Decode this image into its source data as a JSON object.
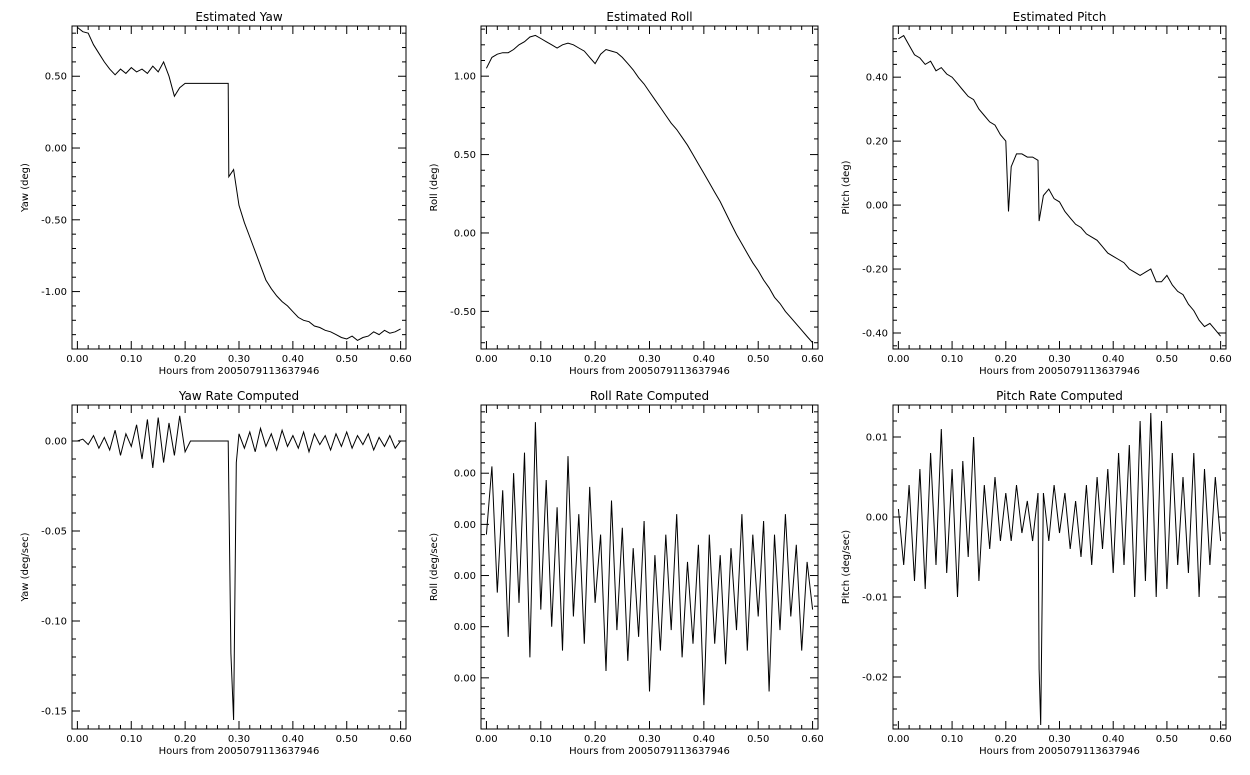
{
  "chart_data": [
    {
      "type": "line",
      "title": "Estimated Yaw",
      "xlabel": "Hours from 2005079113637946",
      "ylabel": "Yaw (deg)",
      "xlim": [
        -0.01,
        0.61
      ],
      "ylim": [
        -1.4,
        0.85
      ],
      "xticks": [
        "0.00",
        "0.10",
        "0.20",
        "0.30",
        "0.40",
        "0.50",
        "0.60"
      ],
      "xtick_values": [
        0,
        0.1,
        0.2,
        0.3,
        0.4,
        0.5,
        0.6
      ],
      "yticks": [
        "-1.00",
        "-0.50",
        "0.00",
        "0.50"
      ],
      "ytick_values": [
        -1,
        -0.5,
        0,
        0.5
      ],
      "x": [
        0.0,
        0.01,
        0.02,
        0.03,
        0.04,
        0.05,
        0.06,
        0.07,
        0.08,
        0.09,
        0.1,
        0.11,
        0.12,
        0.13,
        0.14,
        0.15,
        0.16,
        0.17,
        0.18,
        0.19,
        0.2,
        0.21,
        0.22,
        0.23,
        0.24,
        0.25,
        0.26,
        0.27,
        0.28,
        0.281,
        0.29,
        0.3,
        0.31,
        0.32,
        0.33,
        0.34,
        0.35,
        0.36,
        0.37,
        0.38,
        0.39,
        0.4,
        0.41,
        0.42,
        0.43,
        0.44,
        0.45,
        0.46,
        0.47,
        0.48,
        0.49,
        0.5,
        0.51,
        0.52,
        0.53,
        0.54,
        0.55,
        0.56,
        0.57,
        0.58,
        0.59,
        0.6
      ],
      "y": [
        0.84,
        0.81,
        0.8,
        0.72,
        0.66,
        0.6,
        0.55,
        0.51,
        0.55,
        0.52,
        0.56,
        0.53,
        0.55,
        0.52,
        0.57,
        0.53,
        0.6,
        0.5,
        0.36,
        0.42,
        0.45,
        0.45,
        0.45,
        0.45,
        0.45,
        0.45,
        0.45,
        0.45,
        0.45,
        -0.2,
        -0.15,
        -0.4,
        -0.52,
        -0.62,
        -0.72,
        -0.82,
        -0.92,
        -0.98,
        -1.03,
        -1.07,
        -1.1,
        -1.14,
        -1.18,
        -1.2,
        -1.21,
        -1.24,
        -1.25,
        -1.27,
        -1.28,
        -1.3,
        -1.32,
        -1.33,
        -1.31,
        -1.34,
        -1.32,
        -1.31,
        -1.28,
        -1.3,
        -1.27,
        -1.29,
        -1.28,
        -1.26
      ]
    },
    {
      "type": "line",
      "title": "Estimated Roll",
      "xlabel": "Hours from 2005079113637946",
      "ylabel": "Roll (deg)",
      "xlim": [
        -0.01,
        0.61
      ],
      "ylim": [
        -0.74,
        1.32
      ],
      "xticks": [
        "0.00",
        "0.10",
        "0.20",
        "0.30",
        "0.40",
        "0.50",
        "0.60"
      ],
      "xtick_values": [
        0,
        0.1,
        0.2,
        0.3,
        0.4,
        0.5,
        0.6
      ],
      "yticks": [
        "-0.50",
        "0.00",
        "0.50",
        "1.00"
      ],
      "ytick_values": [
        -0.5,
        0,
        0.5,
        1
      ],
      "x": [
        0.0,
        0.01,
        0.02,
        0.03,
        0.04,
        0.05,
        0.06,
        0.07,
        0.08,
        0.09,
        0.1,
        0.11,
        0.12,
        0.13,
        0.14,
        0.15,
        0.16,
        0.17,
        0.18,
        0.19,
        0.2,
        0.21,
        0.22,
        0.23,
        0.24,
        0.25,
        0.26,
        0.27,
        0.28,
        0.29,
        0.3,
        0.31,
        0.32,
        0.33,
        0.34,
        0.35,
        0.36,
        0.37,
        0.38,
        0.39,
        0.4,
        0.41,
        0.42,
        0.43,
        0.44,
        0.45,
        0.46,
        0.47,
        0.48,
        0.49,
        0.5,
        0.51,
        0.52,
        0.53,
        0.54,
        0.55,
        0.56,
        0.57,
        0.58,
        0.59,
        0.6
      ],
      "y": [
        1.05,
        1.12,
        1.14,
        1.15,
        1.15,
        1.17,
        1.2,
        1.22,
        1.25,
        1.26,
        1.24,
        1.22,
        1.2,
        1.18,
        1.2,
        1.21,
        1.2,
        1.18,
        1.16,
        1.12,
        1.08,
        1.14,
        1.17,
        1.16,
        1.15,
        1.12,
        1.08,
        1.04,
        0.99,
        0.95,
        0.9,
        0.85,
        0.8,
        0.75,
        0.7,
        0.66,
        0.61,
        0.56,
        0.5,
        0.44,
        0.38,
        0.32,
        0.26,
        0.2,
        0.13,
        0.06,
        -0.01,
        -0.07,
        -0.13,
        -0.19,
        -0.24,
        -0.3,
        -0.35,
        -0.41,
        -0.45,
        -0.5,
        -0.54,
        -0.58,
        -0.62,
        -0.66,
        -0.7
      ]
    },
    {
      "type": "line",
      "title": "Estimated Pitch",
      "xlabel": "Hours from 2005079113637946",
      "ylabel": "Pitch (deg)",
      "xlim": [
        -0.01,
        0.61
      ],
      "ylim": [
        -0.45,
        0.56
      ],
      "xticks": [
        "0.00",
        "0.10",
        "0.20",
        "0.30",
        "0.40",
        "0.50",
        "0.60"
      ],
      "xtick_values": [
        0,
        0.1,
        0.2,
        0.3,
        0.4,
        0.5,
        0.6
      ],
      "yticks": [
        "-0.40",
        "-0.20",
        "0.00",
        "0.20",
        "0.40"
      ],
      "ytick_values": [
        -0.4,
        -0.2,
        0,
        0.2,
        0.4
      ],
      "x": [
        0.0,
        0.01,
        0.02,
        0.03,
        0.04,
        0.05,
        0.06,
        0.07,
        0.08,
        0.09,
        0.1,
        0.11,
        0.12,
        0.13,
        0.14,
        0.15,
        0.16,
        0.17,
        0.18,
        0.19,
        0.2,
        0.205,
        0.21,
        0.22,
        0.23,
        0.24,
        0.25,
        0.26,
        0.262,
        0.27,
        0.28,
        0.29,
        0.3,
        0.31,
        0.32,
        0.33,
        0.34,
        0.35,
        0.36,
        0.37,
        0.38,
        0.39,
        0.4,
        0.41,
        0.42,
        0.43,
        0.44,
        0.45,
        0.46,
        0.47,
        0.48,
        0.49,
        0.5,
        0.51,
        0.52,
        0.53,
        0.54,
        0.55,
        0.56,
        0.57,
        0.58,
        0.59,
        0.6
      ],
      "y": [
        0.52,
        0.53,
        0.5,
        0.47,
        0.46,
        0.44,
        0.45,
        0.42,
        0.43,
        0.41,
        0.4,
        0.38,
        0.36,
        0.34,
        0.33,
        0.3,
        0.28,
        0.26,
        0.25,
        0.22,
        0.2,
        -0.02,
        0.12,
        0.16,
        0.16,
        0.15,
        0.15,
        0.14,
        -0.05,
        0.03,
        0.05,
        0.02,
        0.01,
        -0.02,
        -0.04,
        -0.06,
        -0.07,
        -0.09,
        -0.1,
        -0.11,
        -0.13,
        -0.15,
        -0.16,
        -0.17,
        -0.18,
        -0.2,
        -0.21,
        -0.22,
        -0.21,
        -0.2,
        -0.24,
        -0.24,
        -0.22,
        -0.25,
        -0.27,
        -0.28,
        -0.31,
        -0.33,
        -0.36,
        -0.38,
        -0.37,
        -0.39,
        -0.41
      ]
    },
    {
      "type": "line",
      "title": "Yaw Rate Computed",
      "xlabel": "Hours from 2005079113637946",
      "ylabel": "Yaw (deg/sec)",
      "xlim": [
        -0.01,
        0.61
      ],
      "ylim": [
        -0.16,
        0.02
      ],
      "xticks": [
        "0.00",
        "0.10",
        "0.20",
        "0.30",
        "0.40",
        "0.50",
        "0.60"
      ],
      "xtick_values": [
        0,
        0.1,
        0.2,
        0.3,
        0.4,
        0.5,
        0.6
      ],
      "yticks": [
        "-0.15",
        "-0.10",
        "-0.05",
        "0.00"
      ],
      "ytick_values": [
        -0.15,
        -0.1,
        -0.05,
        0
      ],
      "x": [
        0.0,
        0.01,
        0.02,
        0.03,
        0.04,
        0.05,
        0.06,
        0.07,
        0.08,
        0.09,
        0.1,
        0.11,
        0.12,
        0.13,
        0.14,
        0.15,
        0.16,
        0.17,
        0.18,
        0.19,
        0.2,
        0.21,
        0.22,
        0.23,
        0.24,
        0.25,
        0.26,
        0.27,
        0.28,
        0.285,
        0.29,
        0.295,
        0.3,
        0.31,
        0.32,
        0.33,
        0.34,
        0.35,
        0.36,
        0.37,
        0.38,
        0.39,
        0.4,
        0.41,
        0.42,
        0.43,
        0.44,
        0.45,
        0.46,
        0.47,
        0.48,
        0.49,
        0.5,
        0.51,
        0.52,
        0.53,
        0.54,
        0.55,
        0.56,
        0.57,
        0.58,
        0.59,
        0.6
      ],
      "y": [
        0.0,
        0.001,
        -0.002,
        0.003,
        -0.004,
        0.002,
        -0.005,
        0.006,
        -0.008,
        0.004,
        -0.003,
        0.009,
        -0.01,
        0.012,
        -0.015,
        0.013,
        -0.012,
        0.01,
        -0.008,
        0.014,
        -0.006,
        0.0,
        0.0,
        0.0,
        0.0,
        0.0,
        0.0,
        0.0,
        0.0,
        -0.118,
        -0.155,
        -0.012,
        0.004,
        -0.004,
        0.005,
        -0.006,
        0.007,
        -0.003,
        0.004,
        -0.005,
        0.006,
        -0.003,
        0.003,
        -0.004,
        0.005,
        -0.006,
        0.004,
        -0.002,
        0.003,
        -0.005,
        0.004,
        -0.003,
        0.005,
        -0.004,
        0.003,
        -0.002,
        0.004,
        -0.005,
        0.002,
        -0.003,
        0.003,
        -0.004,
        0.0
      ]
    },
    {
      "type": "line",
      "title": "Roll Rate Computed",
      "xlabel": "Hours from 2005079113637946",
      "ylabel": "Roll (deg/sec)",
      "xlim": [
        -0.01,
        0.61
      ],
      "ylim": [
        -0.0045,
        0.005
      ],
      "xticks": [
        "0.00",
        "0.10",
        "0.20",
        "0.30",
        "0.40",
        "0.50",
        "0.60"
      ],
      "xtick_values": [
        0,
        0.1,
        0.2,
        0.3,
        0.4,
        0.5,
        0.6
      ],
      "yticks": [
        "0.00",
        "0.00",
        "0.00",
        "0.00",
        "0.00"
      ],
      "ytick_values": [
        -0.003,
        -0.0015,
        0.0,
        0.0015,
        0.003
      ],
      "x": [
        0.0,
        0.01,
        0.02,
        0.03,
        0.04,
        0.05,
        0.06,
        0.07,
        0.08,
        0.09,
        0.1,
        0.11,
        0.12,
        0.13,
        0.14,
        0.15,
        0.16,
        0.17,
        0.18,
        0.19,
        0.2,
        0.21,
        0.22,
        0.23,
        0.24,
        0.25,
        0.26,
        0.27,
        0.28,
        0.29,
        0.3,
        0.31,
        0.32,
        0.33,
        0.34,
        0.35,
        0.36,
        0.37,
        0.38,
        0.39,
        0.4,
        0.41,
        0.42,
        0.43,
        0.44,
        0.45,
        0.46,
        0.47,
        0.48,
        0.49,
        0.5,
        0.51,
        0.52,
        0.53,
        0.54,
        0.55,
        0.56,
        0.57,
        0.58,
        0.59,
        0.6
      ],
      "y": [
        0.0012,
        0.0032,
        -0.0005,
        0.0025,
        -0.0018,
        0.003,
        -0.0008,
        0.0036,
        -0.0024,
        0.0045,
        -0.001,
        0.0028,
        -0.0015,
        0.002,
        -0.0022,
        0.0035,
        -0.0012,
        0.0018,
        -0.002,
        0.0026,
        -0.0008,
        0.0012,
        -0.0028,
        0.0022,
        -0.0016,
        0.0014,
        -0.0025,
        0.0008,
        -0.0018,
        0.0016,
        -0.0034,
        0.0006,
        -0.0022,
        0.0012,
        -0.0016,
        0.0018,
        -0.0024,
        0.0004,
        -0.002,
        0.0009,
        -0.0038,
        0.0012,
        -0.002,
        0.0006,
        -0.0026,
        0.0008,
        -0.0016,
        0.0018,
        -0.0022,
        0.0012,
        -0.0012,
        0.0016,
        -0.0034,
        0.0012,
        -0.0016,
        0.0018,
        -0.0012,
        0.0009,
        -0.0022,
        0.0004,
        -0.001
      ]
    },
    {
      "type": "line",
      "title": "Pitch Rate Computed",
      "xlabel": "Hours from 2005079113637946",
      "ylabel": "Pitch (deg/sec)",
      "xlim": [
        -0.01,
        0.61
      ],
      "ylim": [
        -0.0265,
        0.014
      ],
      "xticks": [
        "0.00",
        "0.10",
        "0.20",
        "0.30",
        "0.40",
        "0.50",
        "0.60"
      ],
      "xtick_values": [
        0,
        0.1,
        0.2,
        0.3,
        0.4,
        0.5,
        0.6
      ],
      "yticks": [
        "-0.02",
        "-0.01",
        "0.00",
        "0.01"
      ],
      "ytick_values": [
        -0.02,
        -0.01,
        0,
        0.01
      ],
      "x": [
        0.0,
        0.01,
        0.02,
        0.03,
        0.04,
        0.05,
        0.06,
        0.07,
        0.08,
        0.09,
        0.1,
        0.11,
        0.12,
        0.13,
        0.14,
        0.15,
        0.16,
        0.17,
        0.18,
        0.19,
        0.2,
        0.21,
        0.22,
        0.23,
        0.24,
        0.25,
        0.26,
        0.262,
        0.265,
        0.27,
        0.28,
        0.29,
        0.3,
        0.31,
        0.32,
        0.33,
        0.34,
        0.35,
        0.36,
        0.37,
        0.38,
        0.39,
        0.4,
        0.41,
        0.42,
        0.43,
        0.44,
        0.45,
        0.46,
        0.47,
        0.48,
        0.49,
        0.5,
        0.51,
        0.52,
        0.53,
        0.54,
        0.55,
        0.56,
        0.57,
        0.58,
        0.59,
        0.6
      ],
      "y": [
        0.001,
        -0.006,
        0.004,
        -0.008,
        0.006,
        -0.009,
        0.008,
        -0.006,
        0.011,
        -0.007,
        0.006,
        -0.01,
        0.007,
        -0.005,
        0.01,
        -0.008,
        0.004,
        -0.004,
        0.005,
        -0.003,
        0.003,
        -0.003,
        0.004,
        -0.002,
        0.002,
        -0.003,
        0.003,
        -0.019,
        -0.026,
        0.003,
        -0.003,
        0.004,
        -0.002,
        0.003,
        -0.004,
        0.002,
        -0.005,
        0.004,
        -0.006,
        0.005,
        -0.004,
        0.006,
        -0.007,
        0.008,
        -0.006,
        0.009,
        -0.01,
        0.012,
        -0.008,
        0.013,
        -0.01,
        0.012,
        -0.009,
        0.008,
        -0.006,
        0.005,
        -0.007,
        0.008,
        -0.01,
        0.006,
        -0.006,
        0.005,
        -0.003
      ]
    }
  ]
}
